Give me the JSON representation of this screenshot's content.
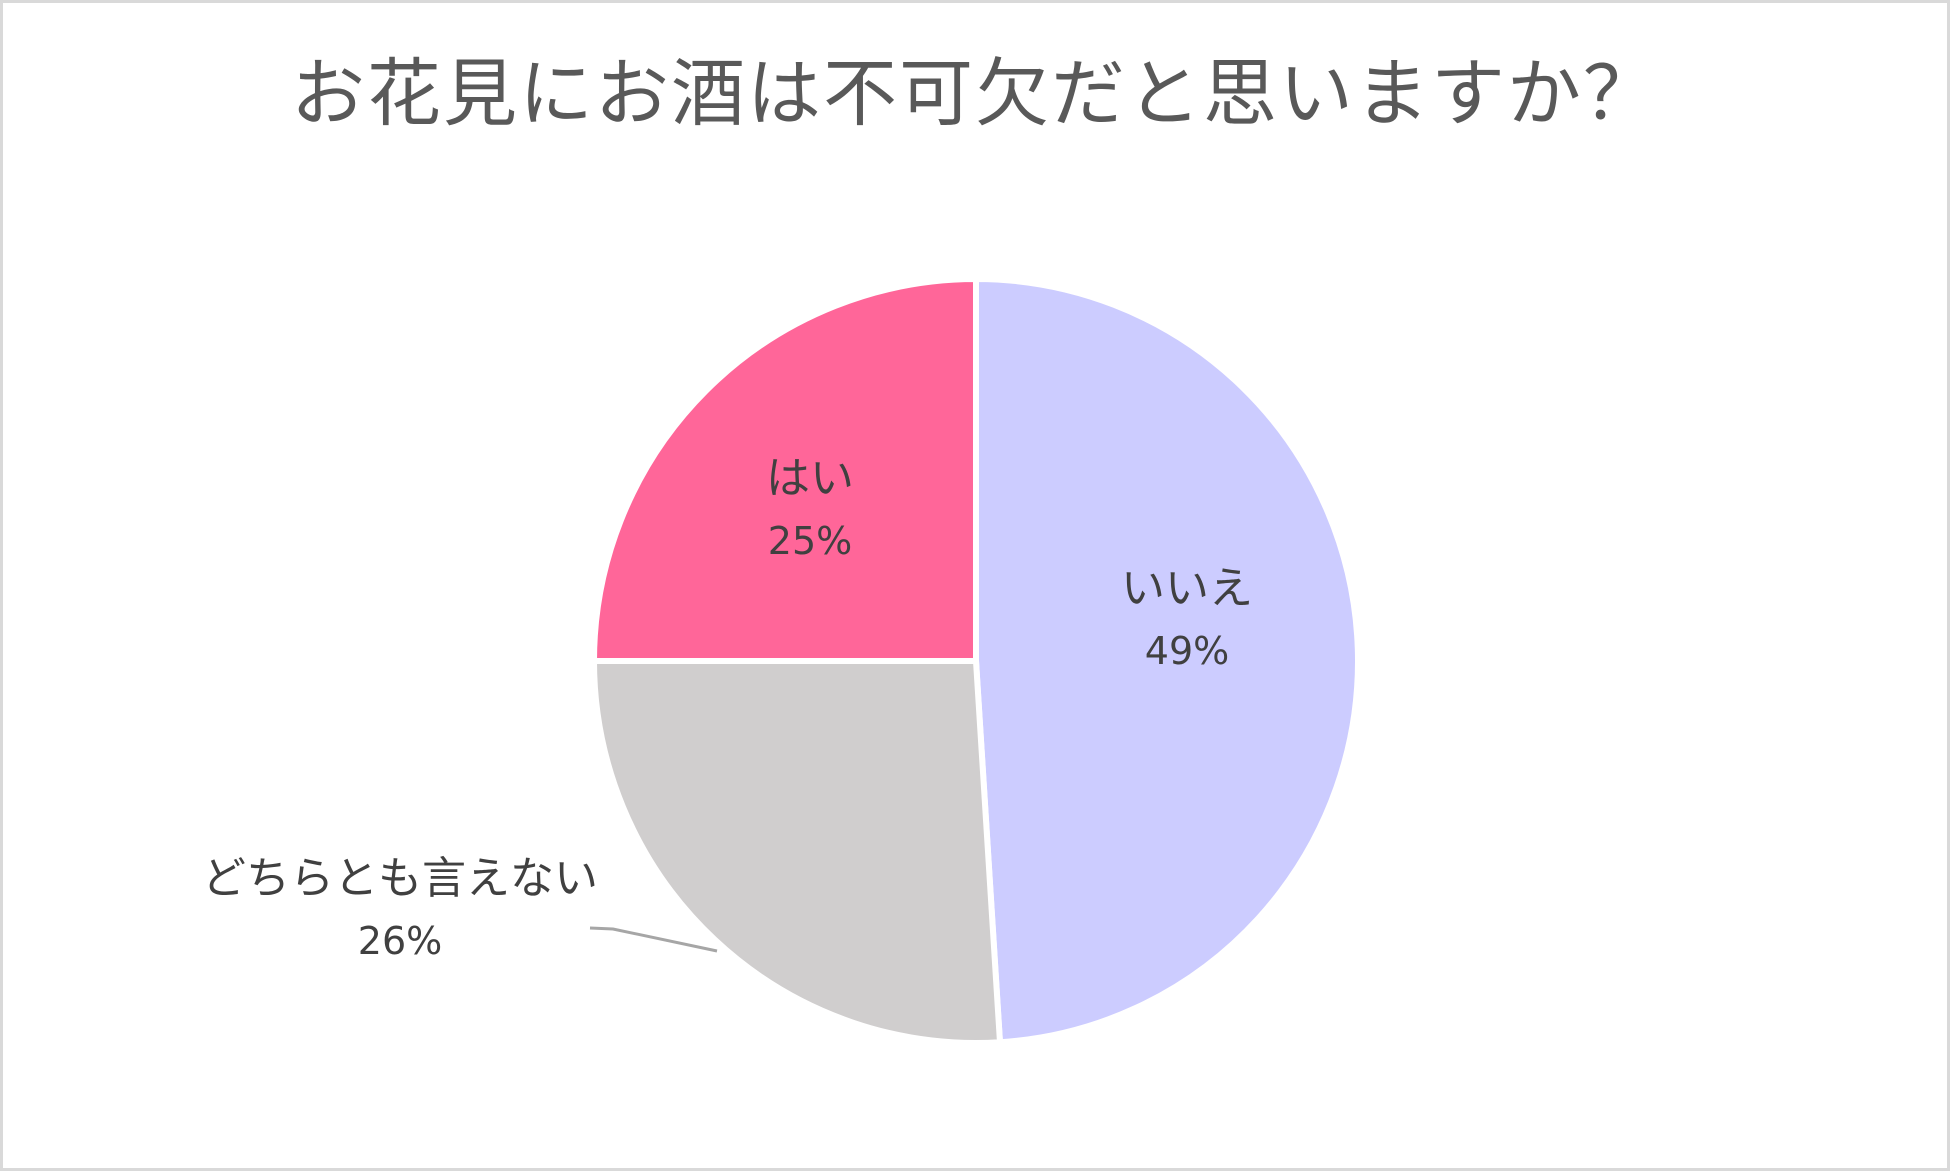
{
  "chart_data": {
    "type": "pie",
    "title": "お花見にお酒は不可欠だと思いますか？",
    "categories": [
      "いいえ",
      "どちらとも言えない",
      "はい"
    ],
    "values": [
      49,
      26,
      25
    ],
    "value_labels": [
      "49%",
      "26%",
      "25%"
    ],
    "colors": [
      "#CCCCFF",
      "#D0CECE",
      "#FF6699"
    ],
    "start_angle_deg": 0,
    "direction": "clockwise",
    "legend": "none",
    "data_labels": {
      "いいえ": {
        "position": "inside",
        "text": [
          "いいえ",
          "49%"
        ]
      },
      "どちらとも言えない": {
        "position": "outside with leader line",
        "text": [
          "どちらとも言えない",
          "26%"
        ]
      },
      "はい": {
        "position": "inside",
        "text": [
          "はい",
          "25%"
        ]
      }
    }
  },
  "title": "お花見にお酒は不可欠だと思いますか？",
  "slices": [
    {
      "name": "いいえ",
      "pct": "49%",
      "color": "#CCCCFF"
    },
    {
      "name": "どちらとも言えない",
      "pct": "26%",
      "color": "#D0CECE"
    },
    {
      "name": "はい",
      "pct": "25%",
      "color": "#FF6699"
    }
  ]
}
